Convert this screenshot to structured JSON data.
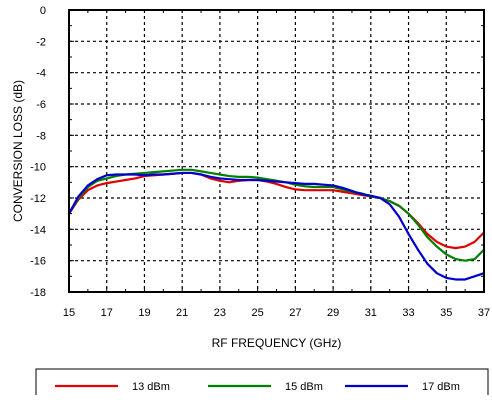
{
  "chart_data": {
    "type": "line",
    "title": "",
    "xlabel": "RF FREQUENCY (GHz)",
    "ylabel": "CONVERSION LOSS (dB)",
    "xlim": [
      15,
      37
    ],
    "ylim": [
      -18,
      0
    ],
    "xticks": [
      15,
      17,
      19,
      21,
      23,
      25,
      27,
      29,
      31,
      33,
      35,
      37
    ],
    "yticks": [
      0,
      -2,
      -4,
      -6,
      -8,
      -10,
      -12,
      -14,
      -16,
      -18
    ],
    "grid": true,
    "grid_style": "dashed",
    "legend_position": "bottom",
    "x": [
      15,
      15.5,
      16,
      16.5,
      17,
      17.5,
      18,
      18.5,
      19,
      19.5,
      20,
      20.5,
      21,
      21.5,
      22,
      22.5,
      23,
      23.5,
      24,
      24.5,
      25,
      25.5,
      26,
      26.5,
      27,
      27.5,
      28,
      28.5,
      29,
      29.5,
      30,
      30.5,
      31,
      31.5,
      32,
      32.5,
      33,
      33.5,
      34,
      34.5,
      35,
      35.5,
      36,
      36.5,
      37
    ],
    "series": [
      {
        "name": "13 dBm",
        "color": "#e00000",
        "values": [
          -13.0,
          -12.1,
          -11.5,
          -11.2,
          -11.05,
          -10.95,
          -10.85,
          -10.75,
          -10.6,
          -10.55,
          -10.5,
          -10.45,
          -10.4,
          -10.4,
          -10.5,
          -10.75,
          -10.9,
          -11.0,
          -10.9,
          -10.85,
          -10.85,
          -10.95,
          -11.1,
          -11.3,
          -11.45,
          -11.5,
          -11.5,
          -11.5,
          -11.5,
          -11.6,
          -11.7,
          -11.8,
          -11.9,
          -12.0,
          -12.2,
          -12.5,
          -13.0,
          -13.6,
          -14.3,
          -14.8,
          -15.1,
          -15.2,
          -15.1,
          -14.8,
          -14.2
        ]
      },
      {
        "name": "15 dBm",
        "color": "#008000",
        "values": [
          -13.0,
          -12.0,
          -11.3,
          -10.9,
          -10.75,
          -10.6,
          -10.5,
          -10.45,
          -10.4,
          -10.35,
          -10.3,
          -10.25,
          -10.2,
          -10.2,
          -10.3,
          -10.4,
          -10.5,
          -10.6,
          -10.65,
          -10.65,
          -10.7,
          -10.8,
          -10.9,
          -11.0,
          -11.15,
          -11.25,
          -11.3,
          -11.3,
          -11.3,
          -11.45,
          -11.6,
          -11.7,
          -11.9,
          -12.0,
          -12.2,
          -12.5,
          -13.0,
          -13.7,
          -14.5,
          -15.1,
          -15.6,
          -15.9,
          -16.0,
          -15.9,
          -15.3
        ]
      },
      {
        "name": "17 dBm",
        "color": "#0000cc",
        "values": [
          -13.0,
          -11.9,
          -11.2,
          -10.8,
          -10.55,
          -10.5,
          -10.5,
          -10.5,
          -10.55,
          -10.5,
          -10.5,
          -10.45,
          -10.4,
          -10.4,
          -10.5,
          -10.65,
          -10.75,
          -10.8,
          -10.85,
          -10.85,
          -10.85,
          -10.9,
          -10.95,
          -11.0,
          -11.05,
          -11.1,
          -11.1,
          -11.15,
          -11.2,
          -11.35,
          -11.55,
          -11.75,
          -11.85,
          -12.0,
          -12.4,
          -13.2,
          -14.3,
          -15.3,
          -16.2,
          -16.8,
          -17.1,
          -17.2,
          -17.2,
          -17.0,
          -16.8
        ]
      }
    ]
  }
}
